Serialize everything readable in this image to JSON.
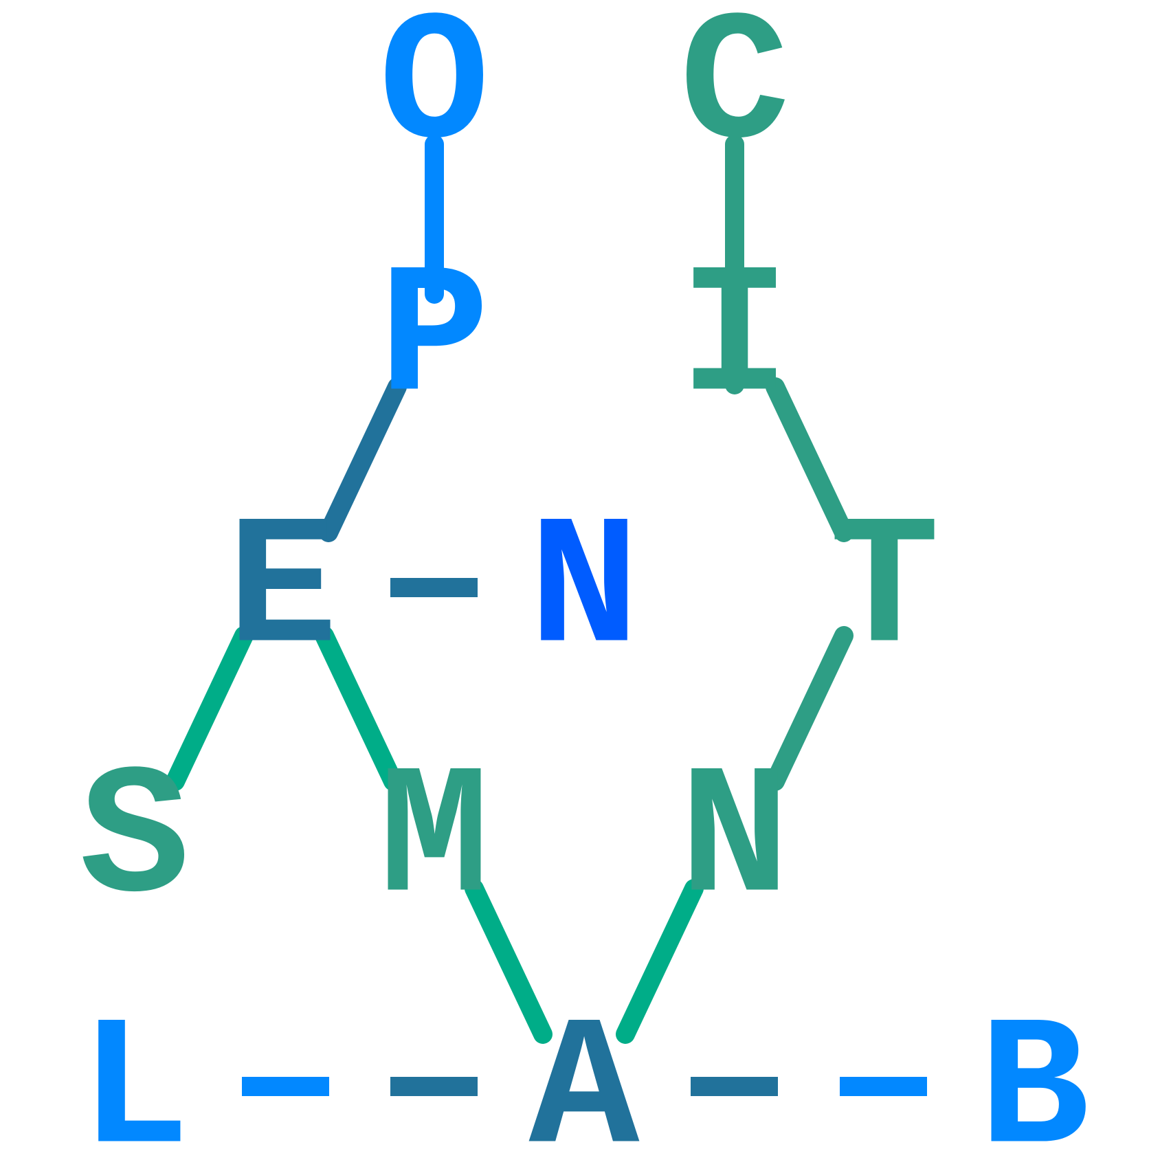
{
  "colors": {
    "bright_blue": "#0288ff",
    "steel_blue": "#21729b",
    "teal": "#2e9e85",
    "green": "#00ad88",
    "royal_blue": "#005cff",
    "background": "#ffffff"
  },
  "atoms": [
    {
      "id": "O",
      "label": "O",
      "color": "#0288ff"
    },
    {
      "id": "C",
      "label": "C",
      "color": "#2e9e85"
    },
    {
      "id": "P",
      "label": "P",
      "color": "#0288ff"
    },
    {
      "id": "I",
      "label": "I",
      "color": "#2e9e85"
    },
    {
      "id": "E",
      "label": "E",
      "color": "#21729b"
    },
    {
      "id": "N1",
      "label": "N",
      "color": "#005cff"
    },
    {
      "id": "T",
      "label": "T",
      "color": "#2e9e85"
    },
    {
      "id": "S",
      "label": "S",
      "color": "#2e9e85"
    },
    {
      "id": "M",
      "label": "M",
      "color": "#2e9e85"
    },
    {
      "id": "N2",
      "label": "N",
      "color": "#2e9e85"
    },
    {
      "id": "L",
      "label": "L",
      "color": "#0288ff"
    },
    {
      "id": "A",
      "label": "A",
      "color": "#21729b"
    },
    {
      "id": "B",
      "label": "B",
      "color": "#0288ff"
    }
  ],
  "bonds": [
    {
      "from": "O",
      "to": "P",
      "style": "line",
      "color": "#0288ff"
    },
    {
      "from": "C",
      "to": "I",
      "style": "line",
      "color": "#2e9e85"
    },
    {
      "from": "P",
      "to": "E",
      "style": "line",
      "color": "#21729b"
    },
    {
      "from": "I",
      "to": "T",
      "style": "line",
      "color": "#2e9e85"
    },
    {
      "from": "E",
      "to": "N1",
      "style": "dash",
      "color": "#21729b"
    },
    {
      "from": "E",
      "to": "S",
      "style": "line",
      "color": "#00ad88"
    },
    {
      "from": "E",
      "to": "M",
      "style": "line",
      "color": "#00ad88"
    },
    {
      "from": "T",
      "to": "N2",
      "style": "line",
      "color": "#2e9e85"
    },
    {
      "from": "M",
      "to": "A",
      "style": "line",
      "color": "#00ad88"
    },
    {
      "from": "N2",
      "to": "A",
      "style": "line",
      "color": "#00ad88"
    },
    {
      "from": "L",
      "to": "A",
      "style": "dash-pair",
      "colors": [
        "#0288ff",
        "#21729b"
      ]
    },
    {
      "from": "A",
      "to": "B",
      "style": "dash-pair",
      "colors": [
        "#21729b",
        "#0288ff"
      ]
    }
  ]
}
